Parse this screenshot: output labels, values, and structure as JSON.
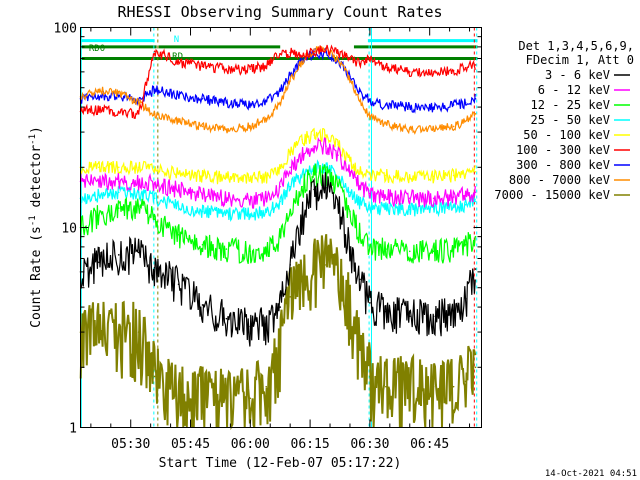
{
  "chart_data": {
    "type": "line",
    "title": "RHESSI Observing Summary Count Rates",
    "xlabel": "Start Time (12-Feb-07 05:17:22)",
    "ylabel_main": "Count Rate (s",
    "ylabel_sup": "-1",
    "ylabel_tail": " detector",
    "ylabel_end": ")",
    "x_ticks": [
      "05:30",
      "05:45",
      "06:00",
      "06:15",
      "06:30",
      "06:45"
    ],
    "x_tick_minutes": [
      330,
      345,
      360,
      375,
      390,
      405
    ],
    "xlim_minutes": [
      317.4,
      418
    ],
    "y_ticks": [
      "1",
      "10",
      "100"
    ],
    "ylim": [
      1,
      100
    ],
    "yscale": "log",
    "footer": "14-Oct-2021 04:51",
    "legend_header": [
      "Det 1,3,4,5,6,9,",
      "FDecim 1, Att 0"
    ],
    "series": [
      {
        "name": "3 - 6 keV",
        "color": "#000000",
        "x": [
          317.4,
          322,
          327,
          332,
          336,
          342,
          348,
          354,
          360,
          364,
          367.5,
          370,
          373,
          376,
          379,
          382,
          385,
          387.5,
          390,
          394,
          400,
          406,
          411,
          414,
          416.5
        ],
        "y": [
          6,
          6.7,
          7.3,
          7.5,
          6.3,
          5.2,
          4.1,
          3.5,
          3.2,
          3.3,
          4,
          6.5,
          11,
          15.5,
          15.8,
          13,
          8,
          5.5,
          4.2,
          3.8,
          3.6,
          3.6,
          3.7,
          4.4,
          6.2
        ]
      },
      {
        "name": "6 - 12 keV",
        "color": "#ff00ff",
        "x": [
          317.4,
          322,
          327,
          332,
          336,
          342,
          348,
          354,
          360,
          364,
          367.5,
          370,
          373,
          376,
          379,
          382,
          385,
          387.5,
          390,
          394,
          400,
          406,
          411,
          414,
          416.5
        ],
        "y": [
          17,
          17,
          17,
          17,
          16.5,
          15.5,
          14.5,
          14,
          13.8,
          14,
          16,
          20,
          23,
          25.5,
          25.5,
          23,
          19,
          16.2,
          14.8,
          14.2,
          14,
          14,
          14.2,
          14.5,
          15
        ]
      },
      {
        "name": "12 - 25 keV",
        "color": "#00ff00",
        "x": [
          317.4,
          322,
          327,
          332,
          336,
          342,
          348,
          354,
          360,
          364,
          367.5,
          370,
          373,
          376,
          379,
          382,
          385,
          387.5,
          390,
          394,
          400,
          406,
          411,
          414,
          416.5
        ],
        "y": [
          10,
          11.5,
          12.5,
          12.8,
          11,
          9.2,
          8.2,
          7.8,
          7.6,
          7.8,
          9,
          12,
          16,
          18.5,
          18.5,
          16,
          12,
          9.2,
          8,
          7.8,
          7.6,
          7.6,
          7.8,
          8.2,
          9
        ]
      },
      {
        "name": "25 - 50 keV",
        "color": "#00ffff",
        "x": [
          317.4,
          322,
          327,
          332,
          336,
          342,
          348,
          354,
          360,
          364,
          367.5,
          370,
          373,
          376,
          379,
          382,
          385,
          387.5,
          390,
          394,
          400,
          406,
          411,
          414,
          416.5
        ],
        "y": [
          14,
          14.5,
          15,
          15,
          14,
          12.8,
          12,
          11.8,
          11.7,
          11.9,
          13.5,
          16,
          18.5,
          20,
          20,
          18,
          15,
          13.3,
          12.6,
          12.4,
          12.3,
          12.4,
          12.6,
          13,
          13.5
        ]
      },
      {
        "name": "50 - 100 keV",
        "color": "#ffff00",
        "x": [
          317.4,
          322,
          327,
          332,
          336,
          342,
          348,
          354,
          360,
          364,
          367.5,
          370,
          373,
          376,
          379,
          382,
          385,
          387.5,
          390,
          394,
          400,
          406,
          411,
          414,
          416.5
        ],
        "y": [
          20,
          20,
          20,
          20,
          19.5,
          18.5,
          18,
          17.8,
          17.8,
          18,
          20,
          24,
          27.5,
          29,
          29,
          26,
          21.5,
          19,
          18.5,
          18.2,
          18,
          18,
          18.2,
          18.5,
          19
        ]
      },
      {
        "name": "100 - 300 keV",
        "color": "#ff0000",
        "x": [
          317.4,
          322,
          327,
          332,
          336,
          342,
          348,
          354,
          360,
          364,
          367.5,
          370,
          373,
          376,
          379,
          382,
          385,
          387.5,
          390,
          394,
          400,
          406,
          411,
          414,
          416.5
        ],
        "y": [
          38,
          39,
          38,
          37,
          76,
          67,
          64,
          62,
          62,
          64,
          74,
          75,
          72,
          76,
          78,
          74,
          70,
          66,
          70,
          63,
          60,
          60,
          61,
          63,
          65
        ]
      },
      {
        "name": "300 - 800 keV",
        "color": "#0000ff",
        "x": [
          317.4,
          322,
          327,
          332,
          336,
          342,
          348,
          354,
          360,
          364,
          367.5,
          370,
          373,
          376,
          379,
          382,
          385,
          387.5,
          390,
          394,
          400,
          406,
          411,
          414,
          416.5
        ],
        "y": [
          44,
          45,
          45,
          43,
          49,
          46,
          44,
          42,
          41,
          43,
          48,
          58,
          68,
          74,
          75,
          68,
          57,
          48,
          43,
          41,
          40,
          40,
          41,
          42,
          44
        ]
      },
      {
        "name": "800 - 7000 keV",
        "color": "#ff8c00",
        "x": [
          317.4,
          322,
          327,
          332,
          336,
          342,
          348,
          354,
          360,
          364,
          367.5,
          370,
          373,
          376,
          379,
          382,
          385,
          387.5,
          390,
          394,
          400,
          406,
          411,
          414,
          416.5
        ],
        "y": [
          45,
          49,
          47,
          42,
          37,
          34,
          32,
          31,
          32,
          35,
          42,
          54,
          68,
          78,
          79,
          69,
          55,
          43,
          36,
          33,
          31,
          31,
          32,
          34,
          37
        ]
      },
      {
        "name": "7000 - 15000 keV",
        "color": "#808000",
        "x": [
          317.4,
          322,
          327,
          332,
          336,
          342,
          348,
          354,
          360,
          364,
          367.5,
          370,
          373,
          376,
          379,
          382,
          385,
          387.5,
          390,
          394,
          400,
          406,
          411,
          414,
          416.5
        ],
        "y": [
          3,
          3,
          3,
          3,
          1.8,
          1.4,
          1.4,
          1.4,
          1.4,
          1.6,
          2.5,
          4.5,
          5.5,
          6.5,
          6.5,
          5.5,
          4,
          2.5,
          1.8,
          1.6,
          1.6,
          1.6,
          1.6,
          1.7,
          2
        ]
      }
    ],
    "flag_bars": [
      {
        "label": "",
        "color": "#00ffff",
        "start": 317.4,
        "end": 336,
        "y": 86
      },
      {
        "label": "",
        "color": "#00ffff",
        "start": 389.5,
        "end": 417,
        "y": 86
      },
      {
        "label": "RD0",
        "color": "#008000",
        "start": 317.4,
        "end": 336.5,
        "y": 80
      },
      {
        "label": "",
        "color": "#008000",
        "start": 317.4,
        "end": 417,
        "y": 70
      },
      {
        "label": "",
        "color": "#008000",
        "start": 337,
        "end": 367.5,
        "y": 80
      },
      {
        "label": "",
        "color": "#008000",
        "start": 386,
        "end": 417,
        "y": 80
      }
    ],
    "flag_marks": [
      {
        "label": "N",
        "color": "#00ffff"
      },
      {
        "label": "RD0",
        "color": "#008000"
      },
      {
        "label": "RD",
        "color": "#008000"
      }
    ],
    "vertical_markers": [
      {
        "t": 317.6,
        "color": "#00ffff",
        "style": "solid"
      },
      {
        "t": 335.8,
        "color": "#00ffff",
        "style": "dashed"
      },
      {
        "t": 336.8,
        "color": "#808000",
        "style": "dashed"
      },
      {
        "t": 389.8,
        "color": "#00ffff",
        "style": "dashed"
      },
      {
        "t": 390.4,
        "color": "#00ffff",
        "style": "solid"
      },
      {
        "t": 416.8,
        "color": "#00ffff",
        "style": "dashed"
      },
      {
        "t": 416.2,
        "color": "#ff0000",
        "style": "dashed"
      }
    ]
  }
}
